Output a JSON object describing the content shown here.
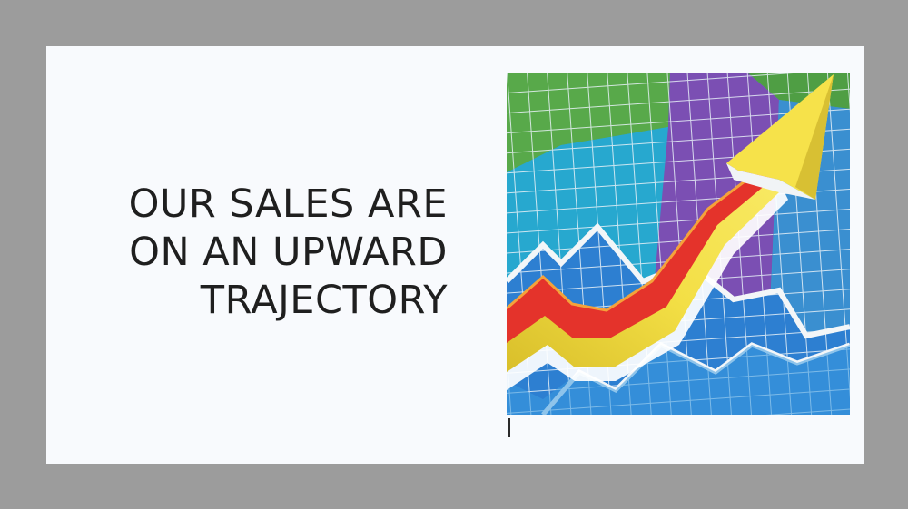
{
  "slide": {
    "title_lines": [
      "OUR SALES ARE",
      "ON AN UPWARD",
      "TRAJECTORY"
    ]
  },
  "artwork": {
    "icon": "upward-trend-arrow-illustration",
    "colors": {
      "green": "#5aa84a",
      "teal": "#2aa6c8",
      "purple": "#7a4fb0",
      "blue": "#2f7fd0",
      "red": "#e4332b",
      "yellow": "#f2dc3c",
      "grid": "#e8f1f7"
    }
  },
  "colors": {
    "frame": "#9c9c9c",
    "slide_background": "#f8fafd",
    "title_text": "#1f1f1f"
  }
}
